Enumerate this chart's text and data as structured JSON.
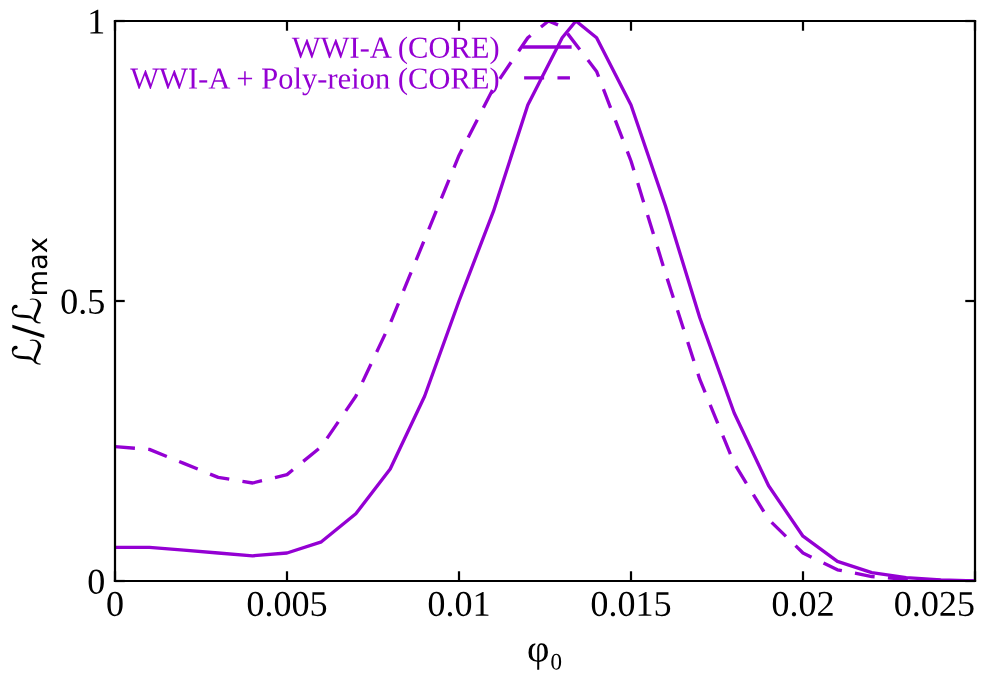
{
  "chart_data": {
    "type": "line",
    "xlabel": "φ₀",
    "ylabel": "ℒ/ℒ$_{max}$",
    "xlim": [
      0,
      0.025
    ],
    "ylim": [
      0,
      1
    ],
    "xticks": [
      0,
      0.005,
      0.01,
      0.015,
      0.02,
      0.025
    ],
    "yticks": [
      0,
      0.5,
      1
    ],
    "grid": false,
    "legend": "top left",
    "series": [
      {
        "name": "WWI-A (CORE)",
        "color": "#9400d3",
        "line_style": "solid",
        "x": [
          0,
          0.001,
          0.002,
          0.003,
          0.004,
          0.005,
          0.006,
          0.007,
          0.008,
          0.009,
          0.01,
          0.011,
          0.012,
          0.013,
          0.0134,
          0.014,
          0.015,
          0.016,
          0.017,
          0.018,
          0.019,
          0.02,
          0.021,
          0.022,
          0.023,
          0.024,
          0.025
        ],
        "values": [
          0.06,
          0.06,
          0.055,
          0.05,
          0.045,
          0.05,
          0.07,
          0.12,
          0.2,
          0.33,
          0.5,
          0.66,
          0.85,
          0.97,
          1.0,
          0.97,
          0.85,
          0.67,
          0.47,
          0.3,
          0.17,
          0.08,
          0.035,
          0.015,
          0.006,
          0.002,
          0
        ]
      },
      {
        "name": "WWI-A + Poly-reion (CORE)",
        "color": "#9400d3",
        "line_style": "dashed",
        "x": [
          0,
          0.001,
          0.002,
          0.003,
          0.004,
          0.005,
          0.006,
          0.007,
          0.008,
          0.009,
          0.01,
          0.011,
          0.012,
          0.0126,
          0.013,
          0.014,
          0.015,
          0.016,
          0.017,
          0.018,
          0.019,
          0.02,
          0.021,
          0.022,
          0.023,
          0.024,
          0.025
        ],
        "values": [
          0.24,
          0.235,
          0.21,
          0.185,
          0.175,
          0.19,
          0.24,
          0.33,
          0.46,
          0.61,
          0.76,
          0.88,
          0.97,
          1.0,
          0.99,
          0.91,
          0.75,
          0.55,
          0.36,
          0.21,
          0.11,
          0.05,
          0.02,
          0.008,
          0.003,
          0.001,
          0
        ]
      }
    ]
  }
}
